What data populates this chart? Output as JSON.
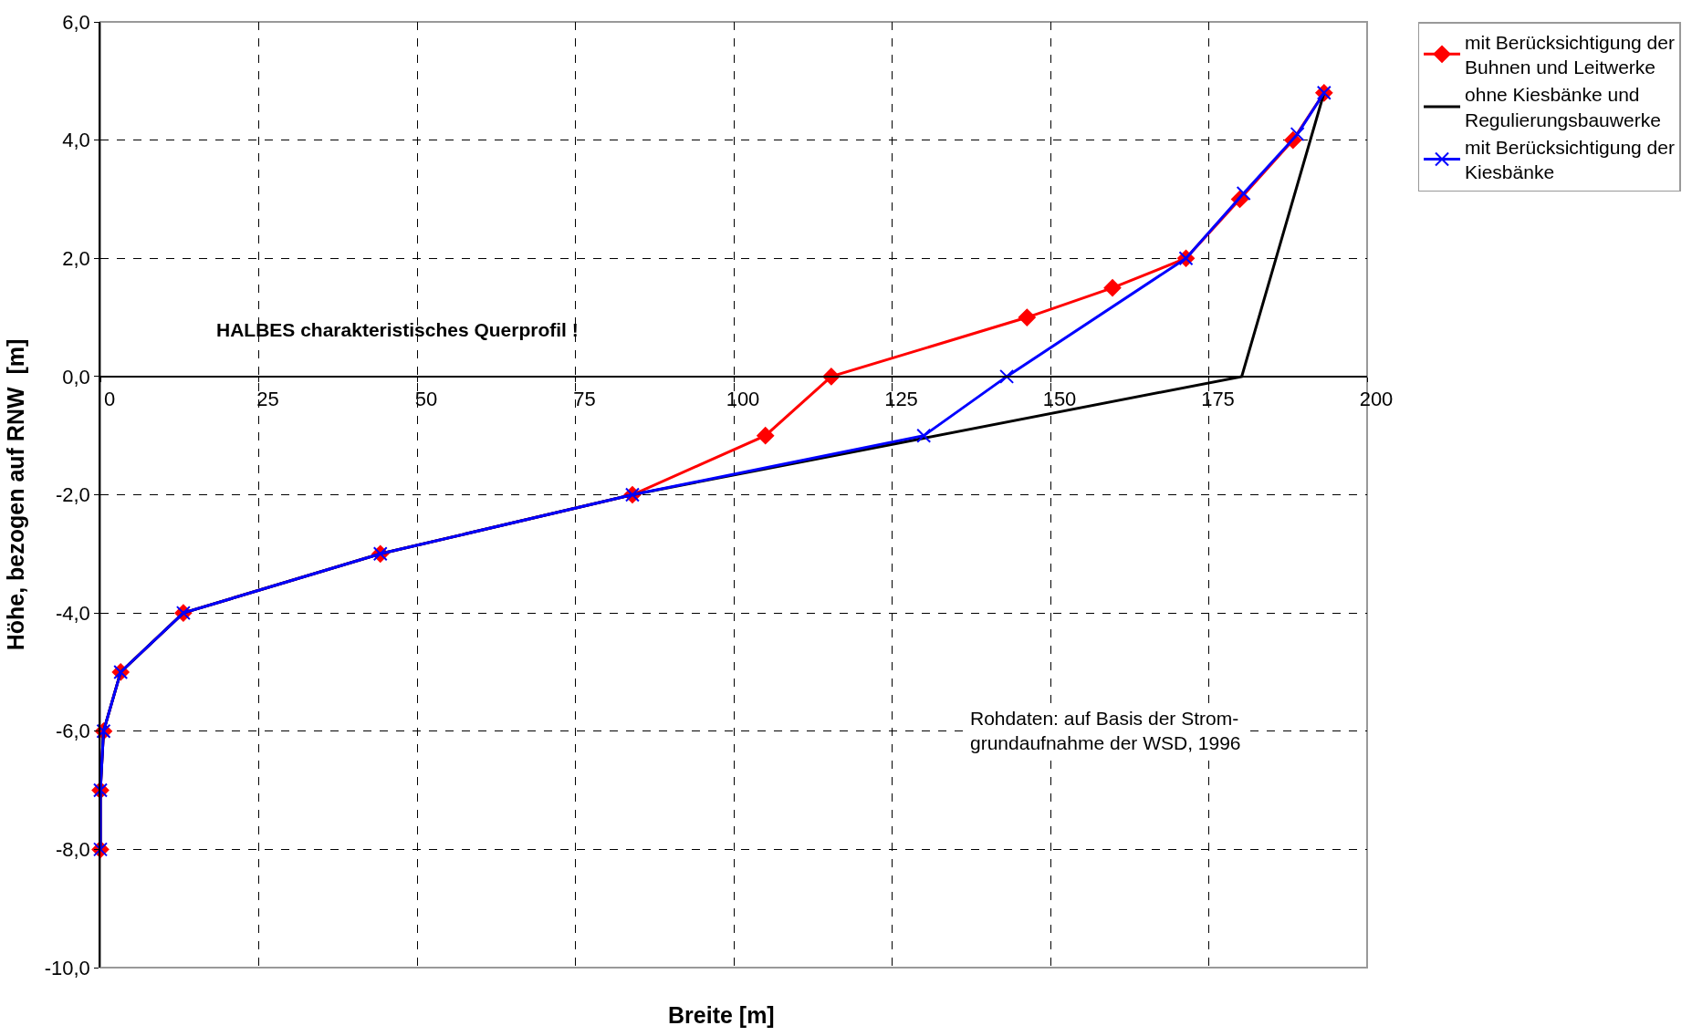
{
  "chart_data": {
    "type": "line",
    "xlabel": "Breite [m]",
    "ylabel": "Höhe, bezogen auf RNW  [m]",
    "xlim": [
      0,
      200
    ],
    "xticks": [
      0,
      25,
      50,
      75,
      100,
      125,
      150,
      175,
      200
    ],
    "ylim": [
      -10,
      6
    ],
    "yticks": [
      {
        "value": -10,
        "label": "-10,0"
      },
      {
        "value": -8,
        "label": "-8,0"
      },
      {
        "value": -6,
        "label": "-6,0"
      },
      {
        "value": -4,
        "label": "-4,0"
      },
      {
        "value": -2,
        "label": "-2,0"
      },
      {
        "value": 0,
        "label": "0,0"
      },
      {
        "value": 2,
        "label": "2,0"
      },
      {
        "value": 4,
        "label": "4,0"
      },
      {
        "value": 6,
        "label": "6,0"
      }
    ],
    "grid": true,
    "legend": "right",
    "series": [
      {
        "name": "mit Berücksichtigung der Buhnen und Leitwerke",
        "color": "#ff0000",
        "marker": "diamond",
        "x": [
          0,
          0,
          0.5,
          3.2,
          13.1,
          44.2,
          84,
          105,
          115.4,
          146.3,
          159.8,
          171.4,
          179.9,
          188.3,
          193.2
        ],
        "values": [
          -8,
          -7,
          -6,
          -5,
          -4,
          -3,
          -2,
          -1,
          0,
          1,
          1.5,
          2,
          3,
          4,
          4.8
        ]
      },
      {
        "name": "ohne Kiesbänke und Regulierungsbauwerke",
        "color": "#000000",
        "marker": "none",
        "x": [
          0,
          0,
          0.5,
          3.2,
          13.1,
          44.2,
          84,
          180.2,
          193.2
        ],
        "values": [
          -8,
          -7,
          -6,
          -5,
          -4,
          -3,
          -2,
          0,
          4.8
        ]
      },
      {
        "name": "mit Berücksichtigung der Kiesbänke",
        "color": "#0000ff",
        "marker": "cross",
        "x": [
          0,
          0,
          0.5,
          3.2,
          13.1,
          44.2,
          84,
          130,
          143.1,
          171.4,
          180.5,
          189,
          193.2
        ],
        "values": [
          -8,
          -7,
          -6,
          -5,
          -4,
          -3,
          -2,
          -1,
          0,
          2,
          3.1,
          4.1,
          4.8
        ]
      }
    ],
    "annotations": [
      "HALBES charakteristisches Querprofil !",
      "Rohdaten: auf Basis der Strom-grundaufnahme der WSD, 1996"
    ]
  }
}
